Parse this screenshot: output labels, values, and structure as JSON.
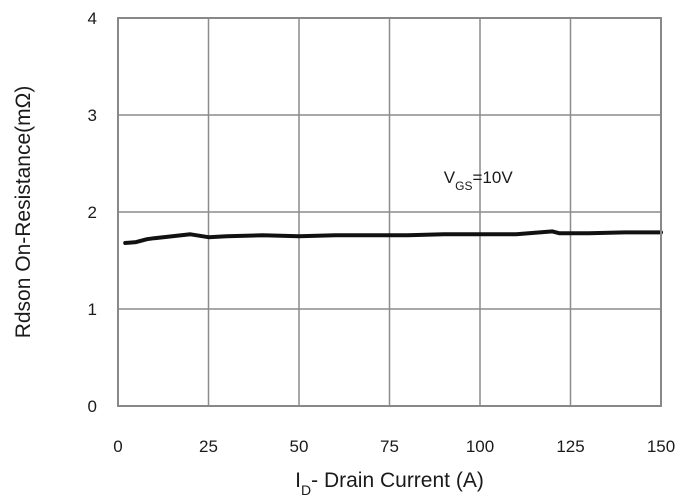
{
  "chart_data": {
    "type": "line",
    "xlabel": {
      "main": "I",
      "sub": "D",
      "rest": "- Drain Current (A)"
    },
    "ylabel": "Rdson On-Resistance(mΩ)",
    "xlim": [
      0,
      150
    ],
    "ylim": [
      0,
      4
    ],
    "x_ticks": [
      "0",
      "25",
      "50",
      "75",
      "100",
      "125",
      "150"
    ],
    "y_ticks": [
      "0",
      "1",
      "2",
      "3",
      "4"
    ],
    "grid": true,
    "annotation": {
      "main": "V",
      "sub": "GS",
      "rest": "=10V",
      "x": 90,
      "y": 2.3
    },
    "series": [
      {
        "name": "",
        "x": [
          2,
          5,
          8,
          10,
          15,
          20,
          25,
          30,
          40,
          50,
          60,
          70,
          80,
          90,
          100,
          110,
          120,
          122,
          130,
          140,
          150
        ],
        "y": [
          1.68,
          1.69,
          1.72,
          1.73,
          1.75,
          1.77,
          1.74,
          1.75,
          1.76,
          1.75,
          1.76,
          1.76,
          1.76,
          1.77,
          1.77,
          1.77,
          1.8,
          1.78,
          1.78,
          1.79,
          1.79
        ]
      }
    ]
  }
}
